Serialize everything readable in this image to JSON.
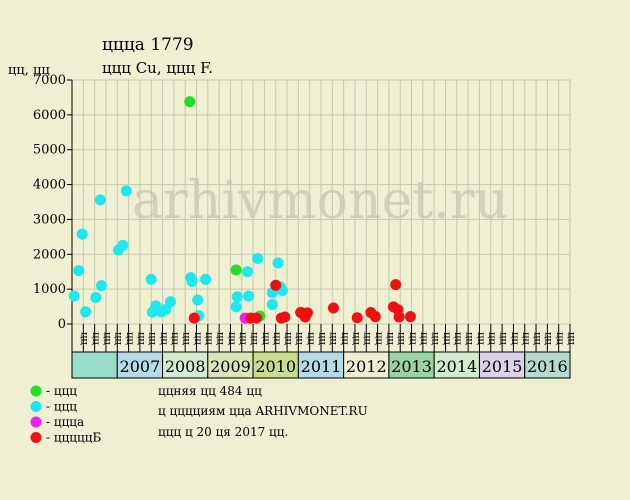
{
  "chart_data": {
    "type": "scatter",
    "title": "ццца 1779",
    "subtitle": "ццц Cu, ццц F.",
    "ylabel": "цц, цц",
    "ylim": [
      0,
      7000
    ],
    "yticks": [
      0,
      1000,
      2000,
      3000,
      4000,
      5000,
      6000,
      7000
    ],
    "watermark": "arhivmonet.ru",
    "grid": true,
    "quarter_labels": [
      "цц",
      "цц",
      "цц",
      "цц"
    ],
    "years": [
      {
        "label": "",
        "color": "#99ddcc"
      },
      {
        "label": "2007",
        "color": "#b5daec"
      },
      {
        "label": "2008",
        "color": "#d2ecd2"
      },
      {
        "label": "2009",
        "color": "#dbe6b8"
      },
      {
        "label": "2010",
        "color": "#c8dc8e"
      },
      {
        "label": "2011",
        "color": "#b5daec"
      },
      {
        "label": "2012",
        "color": "#efefd2"
      },
      {
        "label": "2013",
        "color": "#99d4a0"
      },
      {
        "label": "2014",
        "color": "#d2ecd2"
      },
      {
        "label": "2015",
        "color": "#ddd2ec"
      },
      {
        "label": "2016",
        "color": "#b5d9cc"
      }
    ],
    "x_domain": [
      0,
      44
    ],
    "series": [
      {
        "name": "ццц",
        "color": "#22e022",
        "points": [
          [
            10.4,
            6380
          ],
          [
            14.5,
            1550
          ],
          [
            16.6,
            230
          ]
        ]
      },
      {
        "name": "ццц",
        "color": "#1ee8ee",
        "points": [
          [
            0.2,
            800
          ],
          [
            0.6,
            1530
          ],
          [
            0.9,
            2580
          ],
          [
            1.2,
            350
          ],
          [
            2.1,
            760
          ],
          [
            2.5,
            3560
          ],
          [
            2.6,
            1100
          ],
          [
            4.1,
            2120
          ],
          [
            4.5,
            2260
          ],
          [
            4.8,
            3820
          ],
          [
            7.0,
            1280
          ],
          [
            7.1,
            340
          ],
          [
            7.4,
            520
          ],
          [
            7.9,
            350
          ],
          [
            8.3,
            420
          ],
          [
            8.7,
            640
          ],
          [
            10.5,
            1330
          ],
          [
            10.6,
            1220
          ],
          [
            11.1,
            690
          ],
          [
            11.2,
            240
          ],
          [
            11.8,
            1280
          ],
          [
            14.5,
            490
          ],
          [
            14.6,
            780
          ],
          [
            15.5,
            1500
          ],
          [
            15.6,
            800
          ],
          [
            16.4,
            1880
          ],
          [
            17.7,
            560
          ],
          [
            17.7,
            900
          ],
          [
            18.2,
            1750
          ],
          [
            18.4,
            1070
          ],
          [
            18.6,
            960
          ]
        ]
      },
      {
        "name": "ццца",
        "color": "#ee22ee",
        "points": [
          [
            15.3,
            170
          ]
        ]
      },
      {
        "name": "цццццБ",
        "color": "#ee1111",
        "points": [
          [
            10.8,
            170
          ],
          [
            15.8,
            170
          ],
          [
            16.3,
            170
          ],
          [
            18.0,
            1110
          ],
          [
            18.5,
            170
          ],
          [
            18.8,
            200
          ],
          [
            20.2,
            330
          ],
          [
            20.6,
            200
          ],
          [
            20.8,
            320
          ],
          [
            23.1,
            460
          ],
          [
            25.2,
            180
          ],
          [
            26.4,
            330
          ],
          [
            26.8,
            210
          ],
          [
            28.4,
            490
          ],
          [
            28.6,
            1130
          ],
          [
            28.8,
            410
          ],
          [
            28.9,
            200
          ],
          [
            29.9,
            210
          ]
        ]
      }
    ],
    "legend": [
      {
        "label": "ццц",
        "color": "#22e022"
      },
      {
        "label": "ццц",
        "color": "#1ee8ee"
      },
      {
        "label": "ццца",
        "color": "#ee22ee"
      },
      {
        "label": "цццццБ",
        "color": "#ee1111"
      }
    ],
    "info": [
      "ццняя цц 484 цц",
      "ц цццциям цца ARHIVMONET.RU",
      "ццц ц 20 ця 2017 цц."
    ]
  }
}
